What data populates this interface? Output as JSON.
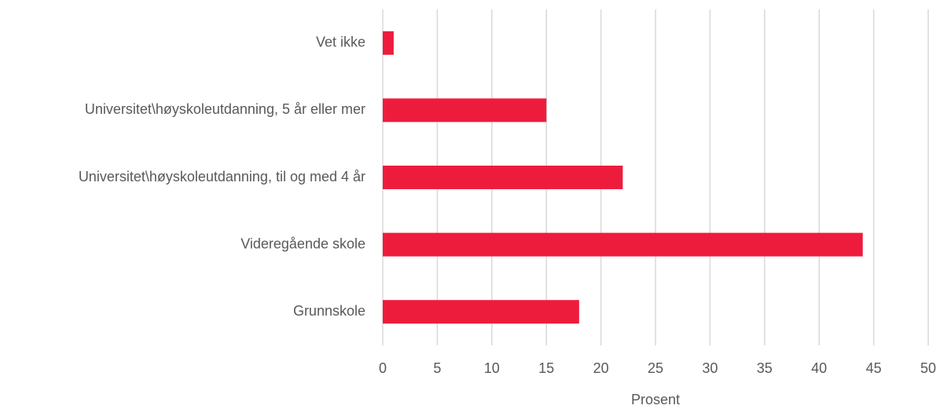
{
  "chart_data": {
    "type": "bar",
    "orientation": "horizontal",
    "categories": [
      "Vet ikke",
      "Universitet\\høyskoleutdanning, 5 år eller mer",
      "Universitet\\høyskoleutdanning, til og med 4 år",
      "Videregående skole",
      "Grunnskole"
    ],
    "values": [
      1,
      15,
      22,
      44,
      18
    ],
    "color": "#ee1c3c",
    "xlabel": "Prosent",
    "xlim": [
      0,
      50
    ],
    "xticks": [
      0,
      5,
      10,
      15,
      20,
      25,
      30,
      35,
      40,
      45,
      50
    ],
    "grid": true
  }
}
